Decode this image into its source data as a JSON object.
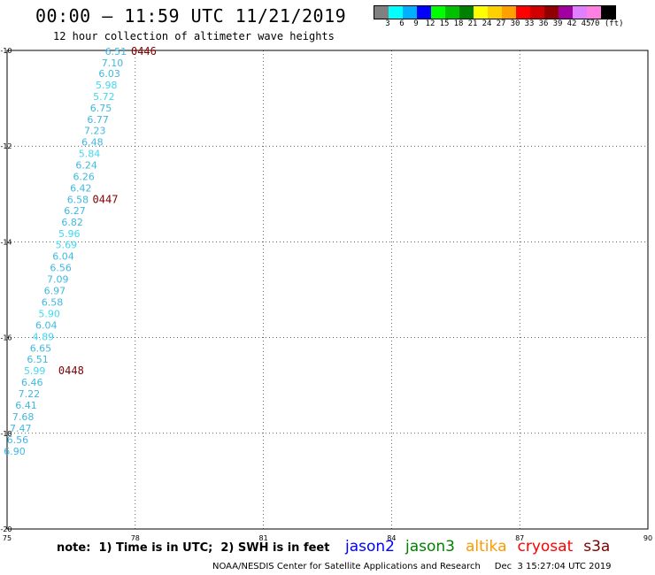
{
  "header": {
    "title": "00:00 – 11:59 UTC 11/21/2019",
    "subtitle": "12 hour collection of altimeter wave heights"
  },
  "legend": {
    "colors": [
      "#808080",
      "#00ffff",
      "#00b0ff",
      "#0000ff",
      "#00ff00",
      "#00c000",
      "#008000",
      "#ffff00",
      "#ffd000",
      "#ffa000",
      "#ff0000",
      "#d00000",
      "#900000",
      "#a000a0",
      "#e080ff",
      "#ff80e0",
      "#000000"
    ],
    "labels": [
      "3",
      "6",
      "9",
      "12",
      "15",
      "18",
      "21",
      "24",
      "27",
      "30",
      "33",
      "36",
      "39",
      "42",
      "45",
      "70 (ft)"
    ]
  },
  "chart_data": {
    "type": "scatter",
    "title": "00:00 – 11:59 UTC 11/21/2019",
    "subtitle": "12 hour collection of altimeter wave heights",
    "xlim": [
      75,
      90
    ],
    "ylim": [
      -20,
      -10
    ],
    "x_ticks": [
      "75",
      "78",
      "81",
      "84",
      "87",
      "90"
    ],
    "y_ticks": [
      "-10",
      "-12",
      "-14",
      "-16",
      "-18",
      "-20"
    ],
    "grid": true,
    "series": [
      {
        "name": "jason2",
        "points": [
          {
            "x": 77.8,
            "y": -10.02,
            "label": "6.51",
            "color": "#40b8e0"
          },
          {
            "x": 77.72,
            "y": -10.26,
            "label": "7.10",
            "color": "#40b8e0"
          },
          {
            "x": 77.65,
            "y": -10.48,
            "label": "6.03",
            "color": "#40b8e0"
          },
          {
            "x": 77.58,
            "y": -10.72,
            "label": "5.98",
            "color": "#40d8f0"
          },
          {
            "x": 77.52,
            "y": -10.96,
            "label": "5.72",
            "color": "#40d8f0"
          },
          {
            "x": 77.45,
            "y": -11.2,
            "label": "6.75",
            "color": "#40b8e0"
          },
          {
            "x": 77.38,
            "y": -11.44,
            "label": "6.77",
            "color": "#40b8e0"
          },
          {
            "x": 77.31,
            "y": -11.67,
            "label": "7.23",
            "color": "#40b8e0"
          },
          {
            "x": 77.25,
            "y": -11.91,
            "label": "6.48",
            "color": "#40b8e0"
          },
          {
            "x": 77.18,
            "y": -12.15,
            "label": "5.84",
            "color": "#40d8f0"
          },
          {
            "x": 77.11,
            "y": -12.39,
            "label": "6.24",
            "color": "#40b8e0"
          },
          {
            "x": 77.05,
            "y": -12.63,
            "label": "6.26",
            "color": "#40b8e0"
          },
          {
            "x": 76.98,
            "y": -12.87,
            "label": "6.42",
            "color": "#40b8e0"
          },
          {
            "x": 76.91,
            "y": -13.11,
            "label": "6.58",
            "color": "#40b8e0"
          },
          {
            "x": 76.84,
            "y": -13.35,
            "label": "6.27",
            "color": "#40b8e0"
          },
          {
            "x": 76.78,
            "y": -13.59,
            "label": "6.82",
            "color": "#40b8e0"
          },
          {
            "x": 76.71,
            "y": -13.83,
            "label": "5.96",
            "color": "#40d8f0"
          },
          {
            "x": 76.64,
            "y": -14.06,
            "label": "5.69",
            "color": "#40d8f0"
          },
          {
            "x": 76.57,
            "y": -14.3,
            "label": "6.04",
            "color": "#40b8e0"
          },
          {
            "x": 76.51,
            "y": -14.54,
            "label": "6.56",
            "color": "#40b8e0"
          },
          {
            "x": 76.44,
            "y": -14.78,
            "label": "7.09",
            "color": "#40b8e0"
          },
          {
            "x": 76.37,
            "y": -15.02,
            "label": "6.97",
            "color": "#40b8e0"
          },
          {
            "x": 76.31,
            "y": -15.26,
            "label": "6.58",
            "color": "#40b8e0"
          },
          {
            "x": 76.24,
            "y": -15.5,
            "label": "5.90",
            "color": "#40d8f0"
          },
          {
            "x": 76.17,
            "y": -15.74,
            "label": "6.04",
            "color": "#40b8e0"
          },
          {
            "x": 76.1,
            "y": -15.98,
            "label": "4.89",
            "color": "#40d8f0"
          },
          {
            "x": 76.04,
            "y": -16.22,
            "label": "6.65",
            "color": "#40b8e0"
          },
          {
            "x": 75.97,
            "y": -16.45,
            "label": "6.51",
            "color": "#40b8e0"
          },
          {
            "x": 75.9,
            "y": -16.69,
            "label": "5.99",
            "color": "#40d8f0"
          },
          {
            "x": 75.84,
            "y": -16.93,
            "label": "6.46",
            "color": "#40b8e0"
          },
          {
            "x": 75.77,
            "y": -17.17,
            "label": "7.22",
            "color": "#40b8e0"
          },
          {
            "x": 75.7,
            "y": -17.41,
            "label": "6.41",
            "color": "#40b8e0"
          },
          {
            "x": 75.63,
            "y": -17.65,
            "label": "7.68",
            "color": "#40b8e0"
          },
          {
            "x": 75.57,
            "y": -17.89,
            "label": "7.47",
            "color": "#40b8e0"
          },
          {
            "x": 75.5,
            "y": -18.13,
            "label": "6.56",
            "color": "#40b8e0"
          },
          {
            "x": 75.43,
            "y": -18.37,
            "label": "6.90",
            "color": "#40b8e0"
          }
        ]
      }
    ],
    "annotations": [
      {
        "x": 77.9,
        "y": -10.02,
        "text": "0446",
        "color": "#800000"
      },
      {
        "x": 77.0,
        "y": -13.11,
        "text": "0447",
        "color": "#800000"
      },
      {
        "x": 76.2,
        "y": -16.69,
        "text": "0448",
        "color": "#800000"
      }
    ]
  },
  "notes": {
    "note": "note:  1) Time is in UTC;  2) SWH is in feet",
    "footer": "NOAA/NESDIS Center for Satellite Applications and Research     Dec  3 15:27:04 UTC 2019"
  },
  "satellites": [
    {
      "name": "jason2",
      "color": "#0000ff"
    },
    {
      "name": "jason3",
      "color": "#008000"
    },
    {
      "name": "altika",
      "color": "#ff9900"
    },
    {
      "name": "cryosat",
      "color": "#ff0000"
    },
    {
      "name": "s3a",
      "color": "#800000"
    }
  ]
}
